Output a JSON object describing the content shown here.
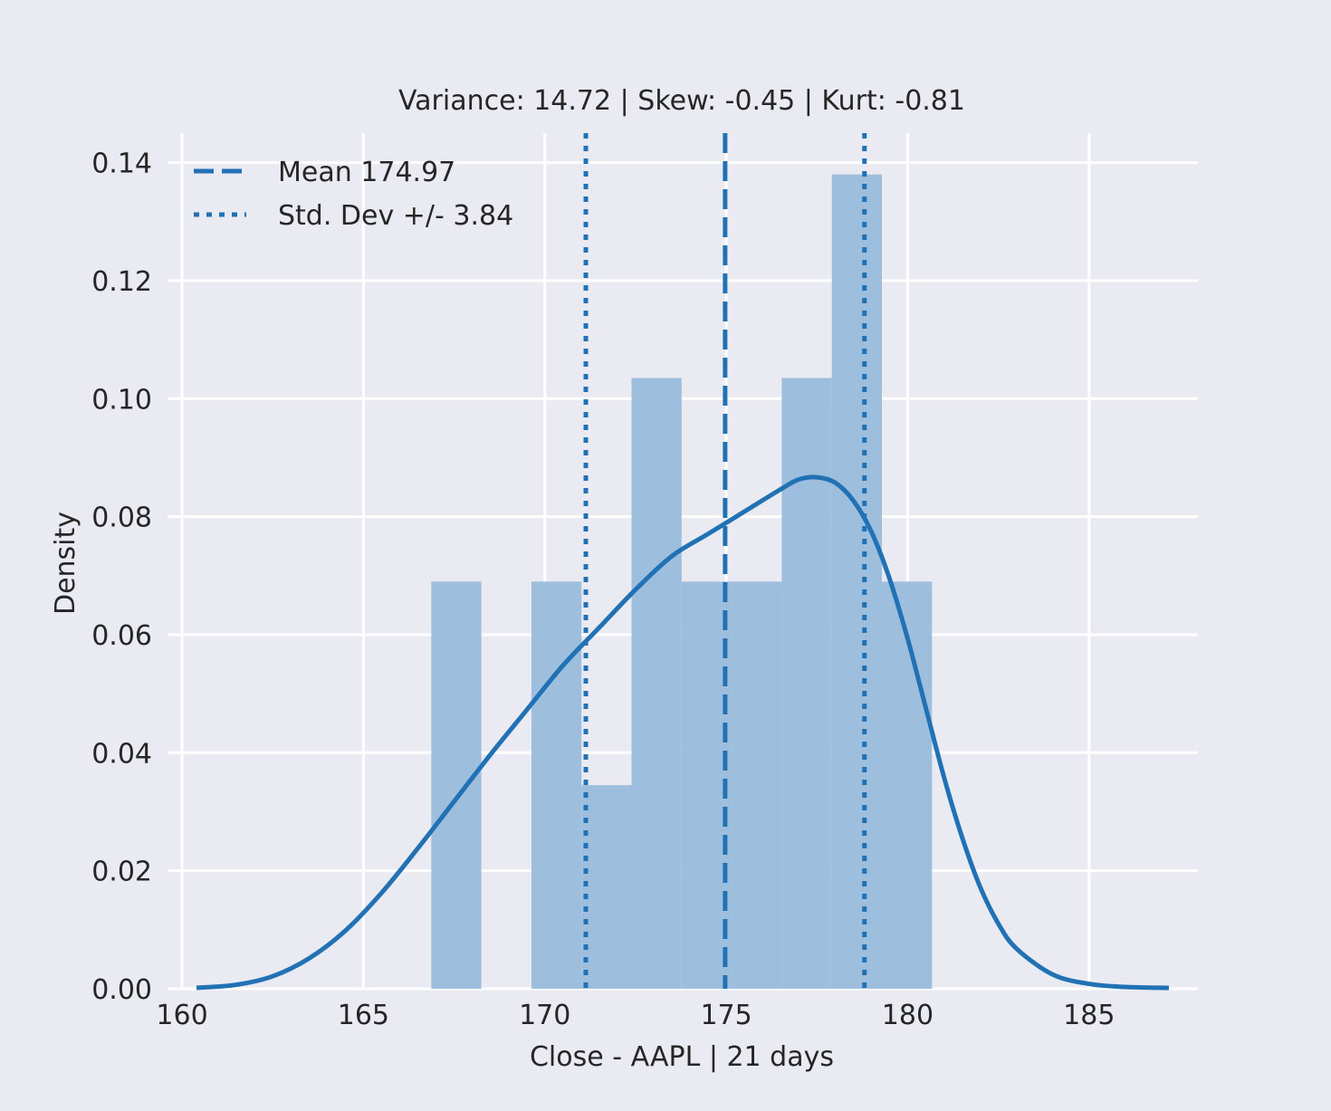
{
  "chart_data": {
    "type": "bar",
    "subtype": "histogram-with-kde",
    "title": "Variance: 14.72 | Skew: -0.45 | Kurt: -0.81",
    "xlabel": "Close - AAPL | 21 days",
    "ylabel": "Density",
    "xlim": [
      159.6,
      188.0
    ],
    "ylim": [
      0,
      0.145
    ],
    "xticks": [
      160,
      165,
      170,
      175,
      180,
      185
    ],
    "xtick_labels": [
      "160",
      "165",
      "170",
      "175",
      "180",
      "185"
    ],
    "yticks": [
      0,
      0.02,
      0.04,
      0.06,
      0.08,
      0.1,
      0.12,
      0.14
    ],
    "ytick_labels": [
      "0.00",
      "0.02",
      "0.04",
      "0.06",
      "0.08",
      "0.10",
      "0.12",
      "0.14"
    ],
    "grid": true,
    "background_color": "#eaeaf2",
    "series_color": "#2171b5",
    "bar_color": "#9dbfdd",
    "histogram": {
      "bin_edges": [
        166.87,
        168.25,
        169.63,
        171.01,
        172.39,
        173.77,
        175.15,
        176.53,
        177.91,
        179.29,
        180.67
      ],
      "density": [
        0.069,
        0,
        0.069,
        0.0345,
        0.1035,
        0.069,
        0.069,
        0.1035,
        0.138,
        0.069
      ]
    },
    "kde": {
      "x": [
        160.4,
        161.5,
        162.5,
        163.5,
        164.5,
        165.5,
        166.5,
        167.5,
        168.5,
        169.5,
        170.5,
        171.5,
        172.5,
        173.5,
        174.5,
        175.5,
        176.5,
        177.0,
        177.5,
        178.0,
        178.5,
        179.0,
        179.5,
        180.0,
        180.5,
        181.0,
        181.5,
        182.0,
        182.5,
        183.0,
        184.0,
        185.0,
        186.0,
        187.2
      ],
      "y": [
        0.0002,
        0.0009,
        0.0028,
        0.0068,
        0.013,
        0.0215,
        0.0315,
        0.042,
        0.0525,
        0.0625,
        0.0725,
        0.081,
        0.0895,
        0.097,
        0.102,
        0.107,
        0.112,
        0.1142,
        0.1147,
        0.1135,
        0.1095,
        0.1025,
        0.092,
        0.0785,
        0.063,
        0.0475,
        0.034,
        0.0228,
        0.0146,
        0.009,
        0.0032,
        0.0011,
        0.0004,
        0.0002
      ]
    },
    "kde_scale": 0.7557,
    "reference_lines": [
      {
        "label": "Mean 174.97",
        "x": 174.97,
        "style": "dashed"
      },
      {
        "label": "Std. Dev +/- 3.84",
        "x": 171.13,
        "style": "dotted"
      },
      {
        "label": "",
        "x": 178.81,
        "style": "dotted"
      }
    ],
    "legend": {
      "position": "upper-left",
      "entries": [
        {
          "label": "Mean 174.97",
          "style": "dashed"
        },
        {
          "label": "Std. Dev +/- 3.84",
          "style": "dotted"
        }
      ]
    }
  }
}
